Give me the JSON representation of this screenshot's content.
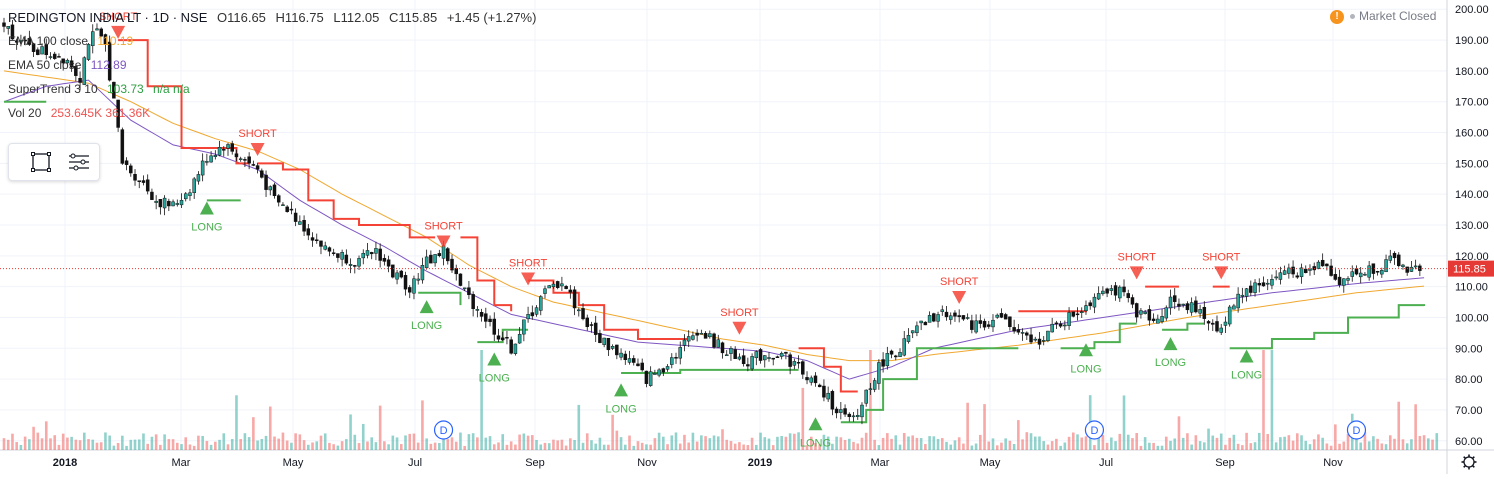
{
  "header": {
    "symbol": "REDINGTON INDIA LT · 1D · NSE",
    "open": "O116.65",
    "high": "H116.75",
    "low": "L112.05",
    "close": "C115.85",
    "change": "+1.45 (+1.27%)",
    "market_status": "Market Closed"
  },
  "indicators": [
    {
      "name": "EMA 100 close",
      "value": "110.19",
      "color": "#f0a830"
    },
    {
      "name": "EMA 50 close",
      "value": "112.89",
      "color": "#7e57c2"
    },
    {
      "name": "SuperTrend 3 10",
      "value": "103.73",
      "extra": "n/a  n/a",
      "color": "#2ea043"
    },
    {
      "name": "Vol 20",
      "value": "253.645K  361.36K",
      "color": "#ef5350"
    }
  ],
  "colors": {
    "up": "#26a69a",
    "down": "#ef5350",
    "candle": "#111111",
    "ema100": "#f0a830",
    "ema50": "#7e57c2",
    "st_up": "#4caf50",
    "st_down": "#f44336",
    "price_line": "#e53935"
  },
  "chart_data": {
    "type": "candlestick",
    "title": "REDINGTON INDIA LT · 1D · NSE",
    "ylim": [
      57,
      203
    ],
    "y_ticks": [
      60,
      70,
      80,
      90,
      100,
      110,
      120,
      130,
      140,
      150,
      160,
      170,
      180,
      190,
      200
    ],
    "y_tick_labels": [
      "60.00",
      "70.00",
      "80.00",
      "90.00",
      "100.00",
      "110.00",
      "120.00",
      "130.00",
      "140.00",
      "150.00",
      "160.00",
      "170.00",
      "180.00",
      "190.00",
      "200.00"
    ],
    "x_ticks": [
      "2018",
      "Mar",
      "May",
      "Jul",
      "Sep",
      "Nov",
      "2019",
      "Mar",
      "May",
      "Jul",
      "Sep",
      "Nov"
    ],
    "last_price": 115.85,
    "last_price_label": "115.85",
    "price_keypoints": [
      [
        0,
        195
      ],
      [
        5,
        188
      ],
      [
        10,
        186
      ],
      [
        15,
        184
      ],
      [
        18,
        178
      ],
      [
        20,
        190
      ],
      [
        22,
        192
      ],
      [
        24,
        188
      ],
      [
        26,
        170
      ],
      [
        28,
        150
      ],
      [
        32,
        145
      ],
      [
        36,
        138
      ],
      [
        40,
        136
      ],
      [
        44,
        142
      ],
      [
        48,
        152
      ],
      [
        52,
        156
      ],
      [
        56,
        152
      ],
      [
        60,
        148
      ],
      [
        64,
        138
      ],
      [
        68,
        134
      ],
      [
        72,
        128
      ],
      [
        76,
        122
      ],
      [
        80,
        120
      ],
      [
        84,
        118
      ],
      [
        88,
        122
      ],
      [
        92,
        114
      ],
      [
        96,
        110
      ],
      [
        100,
        118
      ],
      [
        104,
        122
      ],
      [
        108,
        110
      ],
      [
        112,
        103
      ],
      [
        116,
        96
      ],
      [
        120,
        90
      ],
      [
        124,
        100
      ],
      [
        128,
        108
      ],
      [
        132,
        112
      ],
      [
        136,
        102
      ],
      [
        140,
        94
      ],
      [
        144,
        90
      ],
      [
        148,
        86
      ],
      [
        152,
        80
      ],
      [
        156,
        84
      ],
      [
        160,
        90
      ],
      [
        164,
        96
      ],
      [
        168,
        92
      ],
      [
        172,
        88
      ],
      [
        176,
        86
      ],
      [
        180,
        88
      ],
      [
        184,
        88
      ],
      [
        188,
        84
      ],
      [
        192,
        78
      ],
      [
        196,
        72
      ],
      [
        200,
        66
      ],
      [
        202,
        68
      ],
      [
        204,
        76
      ],
      [
        208,
        86
      ],
      [
        212,
        90
      ],
      [
        216,
        96
      ],
      [
        220,
        100
      ],
      [
        224,
        102
      ],
      [
        228,
        98
      ],
      [
        232,
        98
      ],
      [
        236,
        100
      ],
      [
        240,
        94
      ],
      [
        244,
        92
      ],
      [
        248,
        96
      ],
      [
        252,
        100
      ],
      [
        256,
        104
      ],
      [
        260,
        110
      ],
      [
        264,
        108
      ],
      [
        268,
        102
      ],
      [
        272,
        98
      ],
      [
        276,
        106
      ],
      [
        280,
        104
      ],
      [
        284,
        100
      ],
      [
        288,
        96
      ],
      [
        292,
        108
      ],
      [
        296,
        110
      ],
      [
        300,
        112
      ],
      [
        304,
        116
      ],
      [
        308,
        114
      ],
      [
        312,
        118
      ],
      [
        316,
        112
      ],
      [
        320,
        114
      ],
      [
        324,
        116
      ],
      [
        328,
        118
      ],
      [
        332,
        116
      ]
    ],
    "ema100_keypoints": [
      [
        0,
        180
      ],
      [
        10,
        178
      ],
      [
        20,
        176
      ],
      [
        30,
        170
      ],
      [
        40,
        163
      ],
      [
        50,
        158
      ],
      [
        60,
        154
      ],
      [
        70,
        148
      ],
      [
        80,
        140
      ],
      [
        90,
        133
      ],
      [
        100,
        126
      ],
      [
        110,
        117
      ],
      [
        120,
        110
      ],
      [
        130,
        105
      ],
      [
        140,
        102
      ],
      [
        150,
        99
      ],
      [
        160,
        96
      ],
      [
        170,
        93
      ],
      [
        180,
        91
      ],
      [
        190,
        88
      ],
      [
        200,
        86
      ],
      [
        210,
        86
      ],
      [
        220,
        88
      ],
      [
        240,
        91
      ],
      [
        260,
        95
      ],
      [
        280,
        100
      ],
      [
        300,
        104
      ],
      [
        320,
        108
      ],
      [
        336,
        110.19
      ]
    ],
    "ema50_keypoints": [
      [
        0,
        170
      ],
      [
        10,
        175
      ],
      [
        20,
        177
      ],
      [
        30,
        164
      ],
      [
        40,
        156
      ],
      [
        50,
        153
      ],
      [
        60,
        148
      ],
      [
        70,
        138
      ],
      [
        80,
        130
      ],
      [
        90,
        123
      ],
      [
        100,
        115
      ],
      [
        110,
        108
      ],
      [
        120,
        101
      ],
      [
        130,
        98
      ],
      [
        140,
        95
      ],
      [
        150,
        92
      ],
      [
        160,
        91
      ],
      [
        170,
        90
      ],
      [
        180,
        89
      ],
      [
        190,
        86
      ],
      [
        200,
        80
      ],
      [
        210,
        84
      ],
      [
        220,
        90
      ],
      [
        240,
        96
      ],
      [
        260,
        100
      ],
      [
        280,
        104
      ],
      [
        300,
        108
      ],
      [
        320,
        111
      ],
      [
        336,
        112.89
      ]
    ],
    "supertrend_segments": [
      {
        "dir": "up",
        "points": [
          [
            0,
            170
          ],
          [
            10,
            170
          ]
        ]
      },
      {
        "dir": "down",
        "points": [
          [
            27,
            190
          ],
          [
            34,
            175
          ],
          [
            42,
            155
          ],
          [
            52,
            155
          ],
          [
            55,
            150
          ],
          [
            58,
            150
          ]
        ]
      },
      {
        "dir": "up",
        "points": [
          [
            48,
            138
          ],
          [
            56,
            138
          ]
        ]
      },
      {
        "dir": "down",
        "points": [
          [
            60,
            150
          ],
          [
            66,
            148
          ],
          [
            72,
            138
          ],
          [
            78,
            132
          ],
          [
            84,
            130
          ],
          [
            90,
            130
          ],
          [
            96,
            126
          ],
          [
            102,
            126
          ]
        ]
      },
      {
        "dir": "up",
        "points": [
          [
            98,
            108
          ],
          [
            104,
            108
          ],
          [
            108,
            104
          ]
        ]
      },
      {
        "dir": "down",
        "points": [
          [
            108,
            126
          ],
          [
            112,
            112
          ],
          [
            116,
            104
          ],
          [
            120,
            102
          ]
        ]
      },
      {
        "dir": "up",
        "points": [
          [
            112,
            92
          ],
          [
            118,
            96
          ],
          [
            124,
            96
          ]
        ]
      },
      {
        "dir": "down",
        "points": [
          [
            124,
            112
          ],
          [
            130,
            108
          ],
          [
            136,
            104
          ],
          [
            142,
            96
          ],
          [
            150,
            93
          ],
          [
            162,
            93
          ]
        ]
      },
      {
        "dir": "up",
        "points": [
          [
            146,
            82
          ],
          [
            160,
            83
          ],
          [
            180,
            83
          ],
          [
            188,
            83
          ]
        ]
      },
      {
        "dir": "down",
        "points": [
          [
            188,
            90
          ],
          [
            194,
            84
          ],
          [
            198,
            76
          ],
          [
            202,
            76
          ]
        ]
      },
      {
        "dir": "up",
        "points": [
          [
            198,
            66
          ],
          [
            204,
            70
          ],
          [
            208,
            80
          ],
          [
            216,
            90
          ],
          [
            230,
            90
          ],
          [
            240,
            90
          ]
        ]
      },
      {
        "dir": "down",
        "points": [
          [
            240,
            102
          ],
          [
            252,
            102
          ],
          [
            256,
            104
          ]
        ]
      },
      {
        "dir": "up",
        "points": [
          [
            250,
            90
          ],
          [
            258,
            92
          ],
          [
            264,
            98
          ],
          [
            268,
            98
          ]
        ]
      },
      {
        "dir": "down",
        "points": [
          [
            270,
            110
          ],
          [
            278,
            110
          ]
        ]
      },
      {
        "dir": "up",
        "points": [
          [
            274,
            96
          ],
          [
            280,
            98
          ],
          [
            284,
            98
          ]
        ]
      },
      {
        "dir": "down",
        "points": [
          [
            286,
            110
          ],
          [
            290,
            110
          ]
        ]
      },
      {
        "dir": "up",
        "points": [
          [
            290,
            90
          ],
          [
            300,
            93
          ],
          [
            310,
            95
          ],
          [
            318,
            100
          ],
          [
            330,
            104
          ],
          [
            336,
            103.73
          ]
        ]
      }
    ],
    "signals": [
      {
        "type": "SHORT",
        "i": 27,
        "price": 192
      },
      {
        "type": "LONG",
        "i": 48,
        "price": 136
      },
      {
        "type": "SHORT",
        "i": 60,
        "price": 154
      },
      {
        "type": "LONG",
        "i": 100,
        "price": 104
      },
      {
        "type": "SHORT",
        "i": 104,
        "price": 124
      },
      {
        "type": "LONG",
        "i": 116,
        "price": 87
      },
      {
        "type": "SHORT",
        "i": 124,
        "price": 112
      },
      {
        "type": "LONG",
        "i": 146,
        "price": 77
      },
      {
        "type": "SHORT",
        "i": 174,
        "price": 96
      },
      {
        "type": "LONG",
        "i": 192,
        "price": 66
      },
      {
        "type": "SHORT",
        "i": 226,
        "price": 106
      },
      {
        "type": "LONG",
        "i": 256,
        "price": 90
      },
      {
        "type": "SHORT",
        "i": 268,
        "price": 114
      },
      {
        "type": "LONG",
        "i": 276,
        "price": 92
      },
      {
        "type": "SHORT",
        "i": 288,
        "price": 114
      },
      {
        "type": "LONG",
        "i": 294,
        "price": 88
      }
    ],
    "dividend_markers": [
      {
        "label": "D",
        "i": 104
      },
      {
        "label": "D",
        "i": 258
      },
      {
        "label": "D",
        "i": 320
      }
    ]
  }
}
